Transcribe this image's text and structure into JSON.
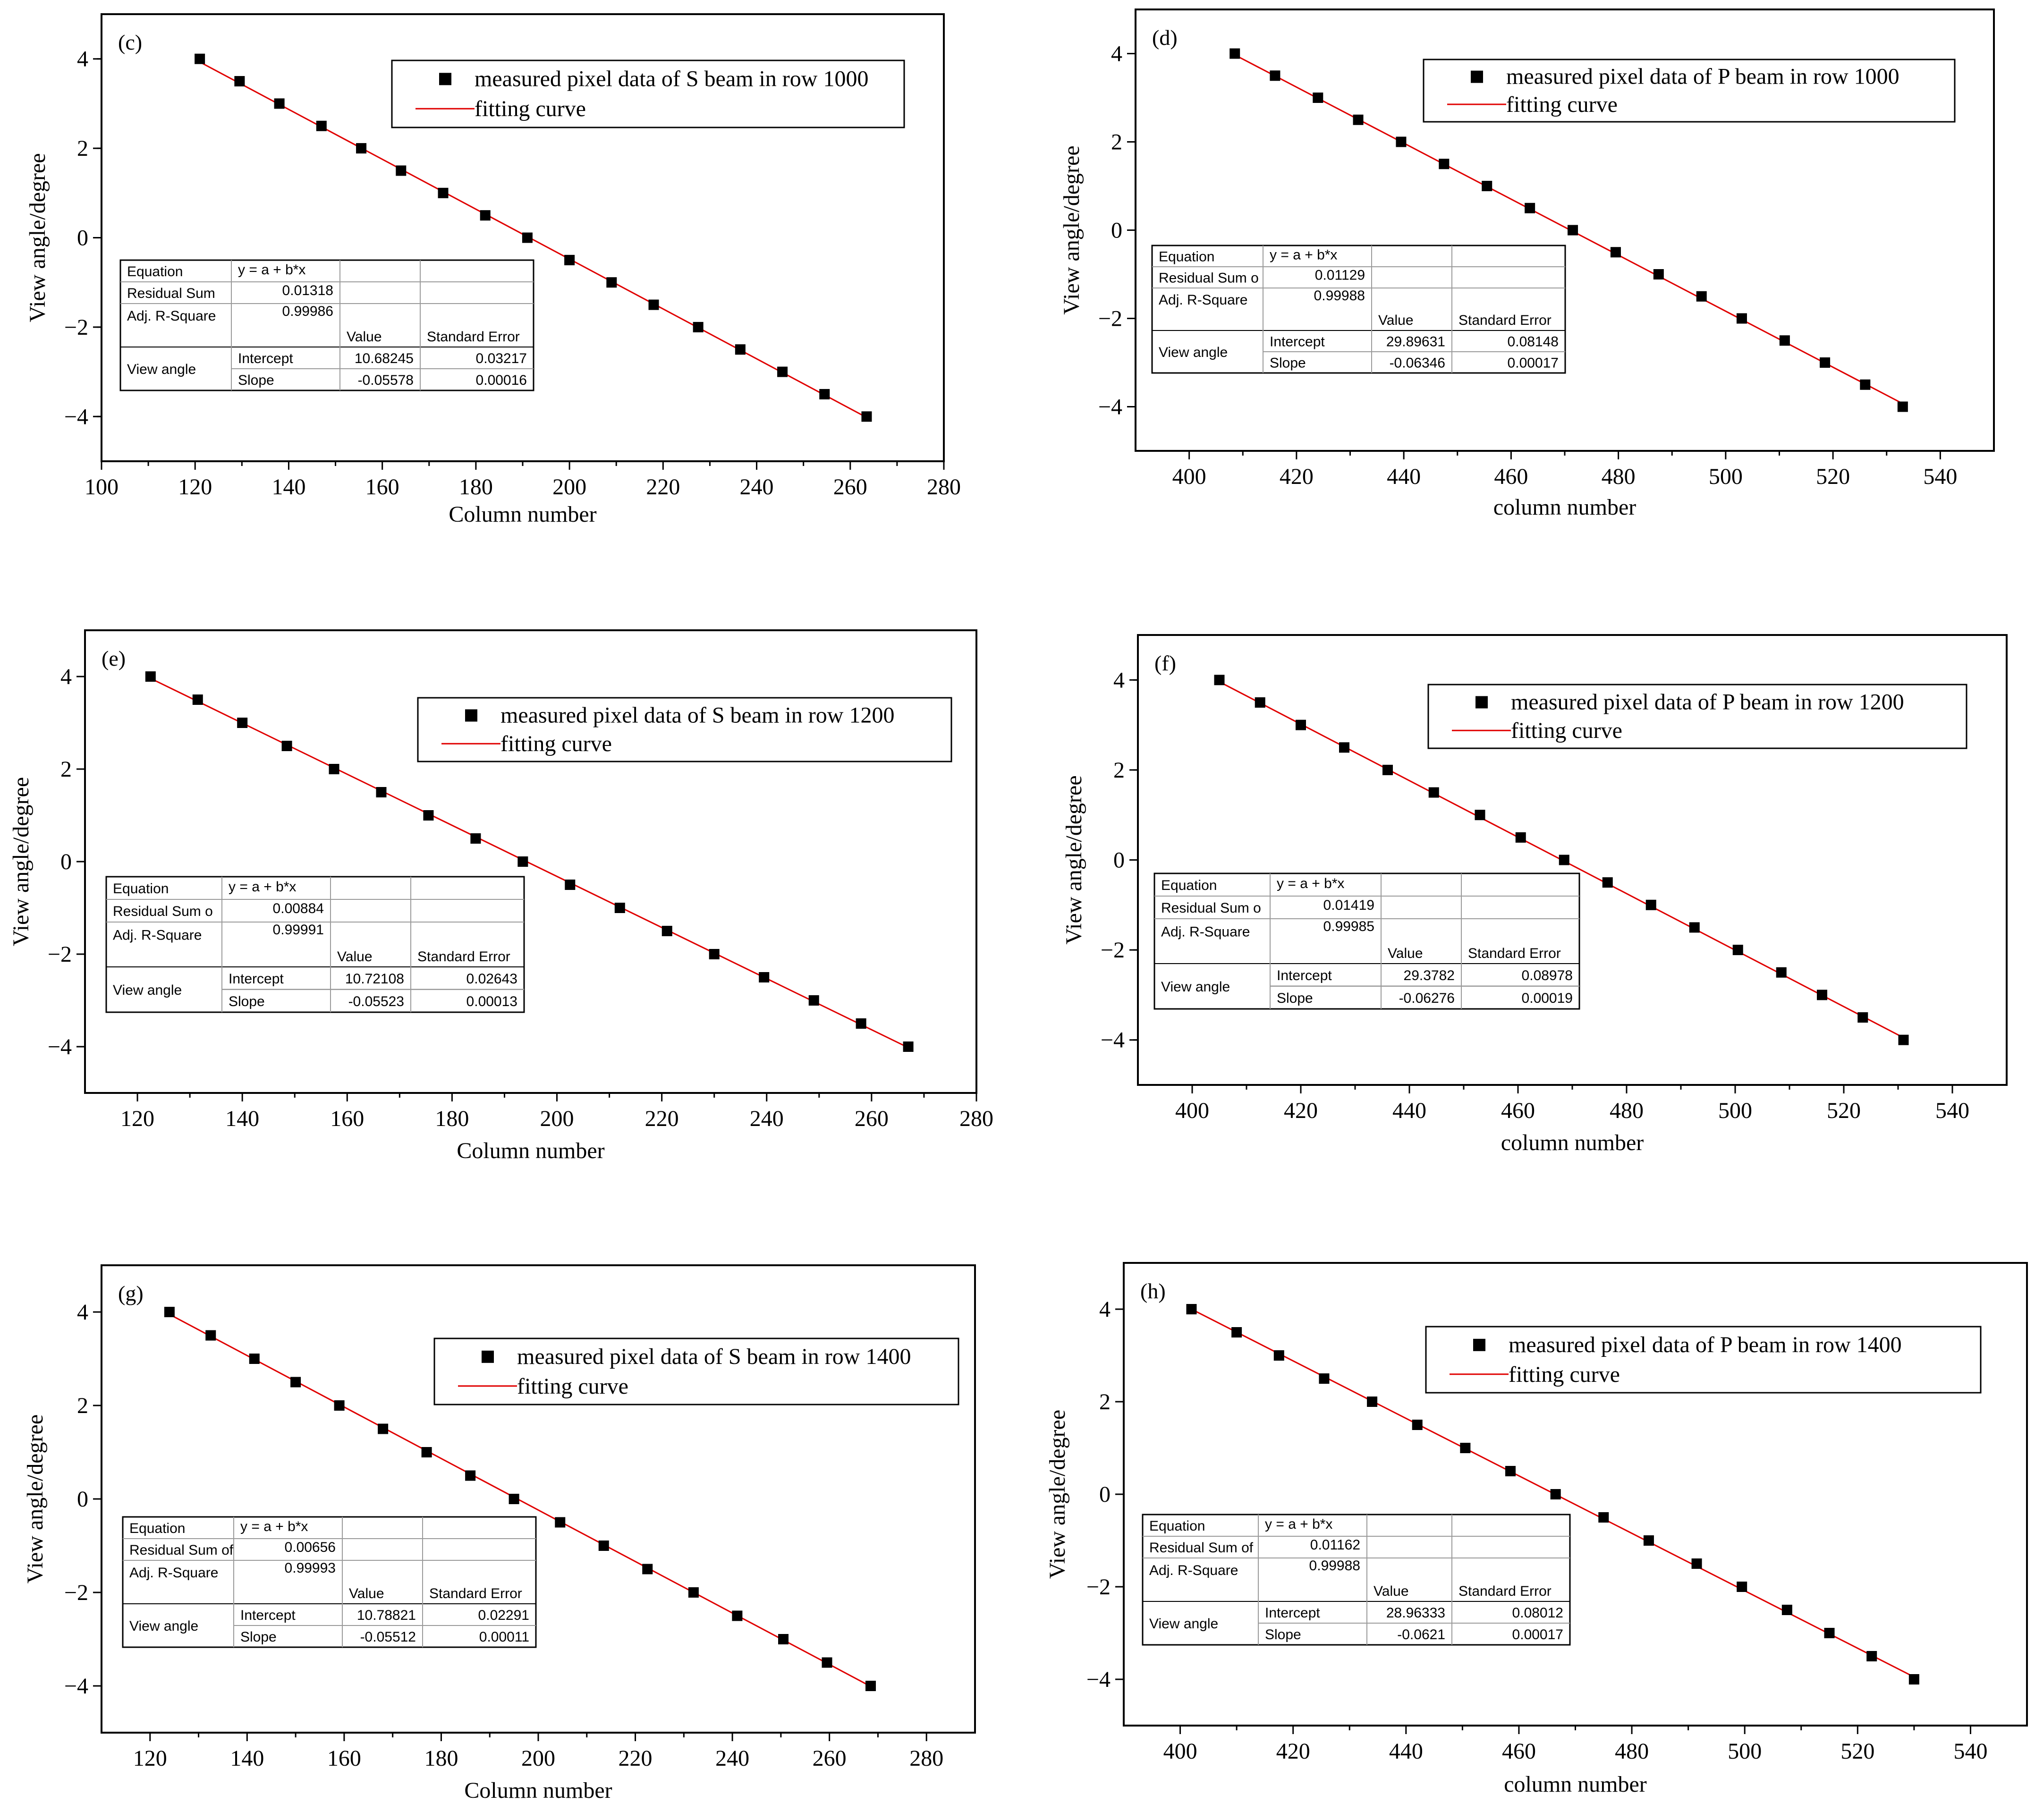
{
  "chart_data": [
    {
      "type": "scatter",
      "panel": "(c)",
      "xlabel": "Column number",
      "ylabel": "View angle/degree",
      "xlim": [
        100,
        280
      ],
      "ylim": [
        -5,
        5
      ],
      "xticks": [
        100,
        120,
        140,
        160,
        180,
        200,
        220,
        240,
        260,
        280
      ],
      "yticks": [
        -4,
        -2,
        0,
        2,
        4
      ],
      "legend": {
        "points": "measured pixel data of S beam in row 1000",
        "line": "fitting curve"
      },
      "series": [
        {
          "name": "measured pixel data of S beam in row 1000",
          "x": [
            121,
            129.5,
            138,
            147,
            155.5,
            164,
            173,
            182,
            191,
            200,
            209,
            218,
            227.5,
            236.5,
            245.5,
            254.5,
            263.5
          ],
          "y": [
            4,
            3.5,
            3,
            2.5,
            2,
            1.5,
            1,
            0.5,
            0,
            -0.5,
            -1,
            -1.5,
            -2,
            -2.5,
            -3,
            -3.5,
            -4
          ]
        },
        {
          "name": "fitting curve",
          "x": [
            121,
            263.5
          ],
          "y": [
            3.93,
            -4.02
          ]
        }
      ],
      "fit_table": {
        "equation_label": "Equation",
        "equation": "y = a + b*x",
        "residual_label": "Residual Sum",
        "residual": "0.01318",
        "r2_label": "Adj. R-Square",
        "r2": "0.99986",
        "value_header": "Value",
        "stderr_header": "Standard Error",
        "group_label": "View angle",
        "intercept_label": "Intercept",
        "intercept": "10.68245",
        "intercept_se": "0.03217",
        "slope_label": "Slope",
        "slope": "-0.05578",
        "slope_se": "0.00016"
      }
    },
    {
      "type": "scatter",
      "panel": "(d)",
      "xlabel": "column number",
      "ylabel": "View angle/degree",
      "xlim": [
        390,
        550
      ],
      "ylim": [
        -5,
        5
      ],
      "xticks": [
        400,
        420,
        440,
        460,
        480,
        500,
        520,
        540
      ],
      "yticks": [
        -4,
        -2,
        0,
        2,
        4
      ],
      "legend": {
        "points": "measured pixel data of P beam in row 1000",
        "line": "fitting curve"
      },
      "series": [
        {
          "name": "measured pixel data of P beam in row 1000",
          "x": [
            408.5,
            416,
            424,
            431.5,
            439.5,
            447.5,
            455.5,
            463.5,
            471.5,
            479.5,
            487.5,
            495.5,
            503,
            511,
            518.5,
            526,
            533
          ],
          "y": [
            4,
            3.5,
            3,
            2.5,
            2,
            1.5,
            1,
            0.5,
            0,
            -0.5,
            -1,
            -1.5,
            -2,
            -2.5,
            -3,
            -3.5,
            -4
          ]
        },
        {
          "name": "fitting curve",
          "x": [
            408.5,
            533
          ],
          "y": [
            3.97,
            -3.93
          ]
        }
      ],
      "fit_table": {
        "equation_label": "Equation",
        "equation": "y = a + b*x",
        "residual_label": "Residual Sum o",
        "residual": "0.01129",
        "r2_label": "Adj. R-Square",
        "r2": "0.99988",
        "value_header": "Value",
        "stderr_header": "Standard Error",
        "group_label": "View angle",
        "intercept_label": "Intercept",
        "intercept": "29.89631",
        "intercept_se": "0.08148",
        "slope_label": "Slope",
        "slope": "-0.06346",
        "slope_se": "0.00017"
      }
    },
    {
      "type": "scatter",
      "panel": "(e)",
      "xlabel": "Column number",
      "ylabel": "View angle/degree",
      "xlim": [
        110,
        280
      ],
      "ylim": [
        -5,
        5
      ],
      "xticks": [
        120,
        140,
        160,
        180,
        200,
        220,
        240,
        260,
        280
      ],
      "yticks": [
        -4,
        -2,
        0,
        2,
        4
      ],
      "legend": {
        "points": "measured pixel data of S beam in row 1200",
        "line": "fitting curve"
      },
      "series": [
        {
          "name": "measured pixel data of S beam in row 1200",
          "x": [
            122.5,
            131.5,
            140,
            148.5,
            157.5,
            166.5,
            175.5,
            184.5,
            193.5,
            202.5,
            212,
            221,
            230,
            239.5,
            249,
            258,
            267
          ],
          "y": [
            4,
            3.5,
            3,
            2.5,
            2,
            1.5,
            1,
            0.5,
            0,
            -0.5,
            -1,
            -1.5,
            -2,
            -2.5,
            -3,
            -3.5,
            -4
          ]
        },
        {
          "name": "fitting curve",
          "x": [
            122.5,
            267
          ],
          "y": [
            3.96,
            -4.02
          ]
        }
      ],
      "fit_table": {
        "equation_label": "Equation",
        "equation": "y = a + b*x",
        "residual_label": "Residual Sum o",
        "residual": "0.00884",
        "r2_label": "Adj. R-Square",
        "r2": "0.99991",
        "value_header": "Value",
        "stderr_header": "Standard Error",
        "group_label": "View angle",
        "intercept_label": "Intercept",
        "intercept": "10.72108",
        "intercept_se": "0.02643",
        "slope_label": "Slope",
        "slope": "-0.05523",
        "slope_se": "0.00013"
      }
    },
    {
      "type": "scatter",
      "panel": "(f)",
      "xlabel": "column number",
      "ylabel": "View angle/degree",
      "xlim": [
        390,
        550
      ],
      "ylim": [
        -5,
        5
      ],
      "xticks": [
        400,
        420,
        440,
        460,
        480,
        500,
        520,
        540
      ],
      "yticks": [
        -4,
        -2,
        0,
        2,
        4
      ],
      "legend": {
        "points": "measured pixel data of P beam in row 1200",
        "line": "fitting curve"
      },
      "series": [
        {
          "name": "measured pixel data of P beam in row 1200",
          "x": [
            405,
            412.5,
            420,
            428,
            436,
            444.5,
            453,
            460.5,
            468.5,
            476.5,
            484.5,
            492.5,
            500.5,
            508.5,
            516,
            523.5,
            531
          ],
          "y": [
            4,
            3.5,
            3,
            2.5,
            2,
            1.5,
            1,
            0.5,
            0,
            -0.5,
            -1,
            -1.5,
            -2,
            -2.5,
            -3,
            -3.5,
            -4
          ]
        },
        {
          "name": "fitting curve",
          "x": [
            405,
            531
          ],
          "y": [
            3.96,
            -3.95
          ]
        }
      ],
      "fit_table": {
        "equation_label": "Equation",
        "equation": "y = a + b*x",
        "residual_label": "Residual Sum o",
        "residual": "0.01419",
        "r2_label": "Adj. R-Square",
        "r2": "0.99985",
        "value_header": "Value",
        "stderr_header": "Standard Error",
        "group_label": "View angle",
        "intercept_label": "Intercept",
        "intercept": "29.3782",
        "intercept_se": "0.08978",
        "slope_label": "Slope",
        "slope": "-0.06276",
        "slope_se": "0.00019"
      }
    },
    {
      "type": "scatter",
      "panel": "(g)",
      "xlabel": "Column number",
      "ylabel": "View angle/degree",
      "xlim": [
        110,
        290
      ],
      "ylim": [
        -5,
        5
      ],
      "xticks": [
        120,
        140,
        160,
        180,
        200,
        220,
        240,
        260,
        280
      ],
      "yticks": [
        -4,
        -2,
        0,
        2,
        4
      ],
      "legend": {
        "points": "measured pixel data of S beam in row 1400",
        "line": "fitting curve"
      },
      "series": [
        {
          "name": "measured pixel data of S beam in row 1400",
          "x": [
            124,
            132.5,
            141.5,
            150,
            159,
            168,
            177,
            186,
            195,
            204.5,
            213.5,
            222.5,
            232,
            241,
            250.5,
            259.5,
            268.5
          ],
          "y": [
            4,
            3.5,
            3,
            2.5,
            2,
            1.5,
            1,
            0.5,
            0,
            -0.5,
            -1,
            -1.5,
            -2,
            -2.5,
            -3,
            -3.5,
            -4
          ]
        },
        {
          "name": "fitting curve",
          "x": [
            124,
            268.5
          ],
          "y": [
            3.95,
            -4.01
          ]
        }
      ],
      "fit_table": {
        "equation_label": "Equation",
        "equation": "y = a + b*x",
        "residual_label": "Residual Sum of",
        "residual": "0.00656",
        "r2_label": "Adj. R-Square",
        "r2": "0.99993",
        "value_header": "Value",
        "stderr_header": "Standard Error",
        "group_label": "View angle",
        "intercept_label": "Intercept",
        "intercept": "10.78821",
        "intercept_se": "0.02291",
        "slope_label": "Slope",
        "slope": "-0.05512",
        "slope_se": "0.00011"
      }
    },
    {
      "type": "scatter",
      "panel": "(h)",
      "xlabel": "column number",
      "ylabel": "View angle/degree",
      "xlim": [
        390,
        550
      ],
      "ylim": [
        -5,
        5
      ],
      "xticks": [
        400,
        420,
        440,
        460,
        480,
        500,
        520,
        540
      ],
      "yticks": [
        -4,
        -2,
        0,
        2,
        4
      ],
      "legend": {
        "points": "measured pixel data of P beam in row 1400",
        "line": "fitting curve"
      },
      "series": [
        {
          "name": "measured pixel data of P beam in row 1400",
          "x": [
            402,
            410,
            417.5,
            425.5,
            434,
            442,
            450.5,
            458.5,
            466.5,
            475,
            483,
            491.5,
            499.5,
            507.5,
            515,
            522.5,
            530
          ],
          "y": [
            4,
            3.5,
            3,
            2.5,
            2,
            1.5,
            1,
            0.5,
            0,
            -0.5,
            -1,
            -1.5,
            -2,
            -2.5,
            -3,
            -3.5,
            -4
          ]
        },
        {
          "name": "fitting curve",
          "x": [
            402,
            530
          ],
          "y": [
            4.0,
            -3.95
          ]
        }
      ],
      "fit_table": {
        "equation_label": "Equation",
        "equation": "y = a + b*x",
        "residual_label": "Residual Sum of",
        "residual": "0.01162",
        "r2_label": "Adj. R-Square",
        "r2": "0.99988",
        "value_header": "Value",
        "stderr_header": "Standard Error",
        "group_label": "View angle",
        "intercept_label": "Intercept",
        "intercept": "28.96333",
        "intercept_se": "0.08012",
        "slope_label": "Slope",
        "slope": "-0.0621",
        "slope_se": "0.00017"
      }
    }
  ]
}
